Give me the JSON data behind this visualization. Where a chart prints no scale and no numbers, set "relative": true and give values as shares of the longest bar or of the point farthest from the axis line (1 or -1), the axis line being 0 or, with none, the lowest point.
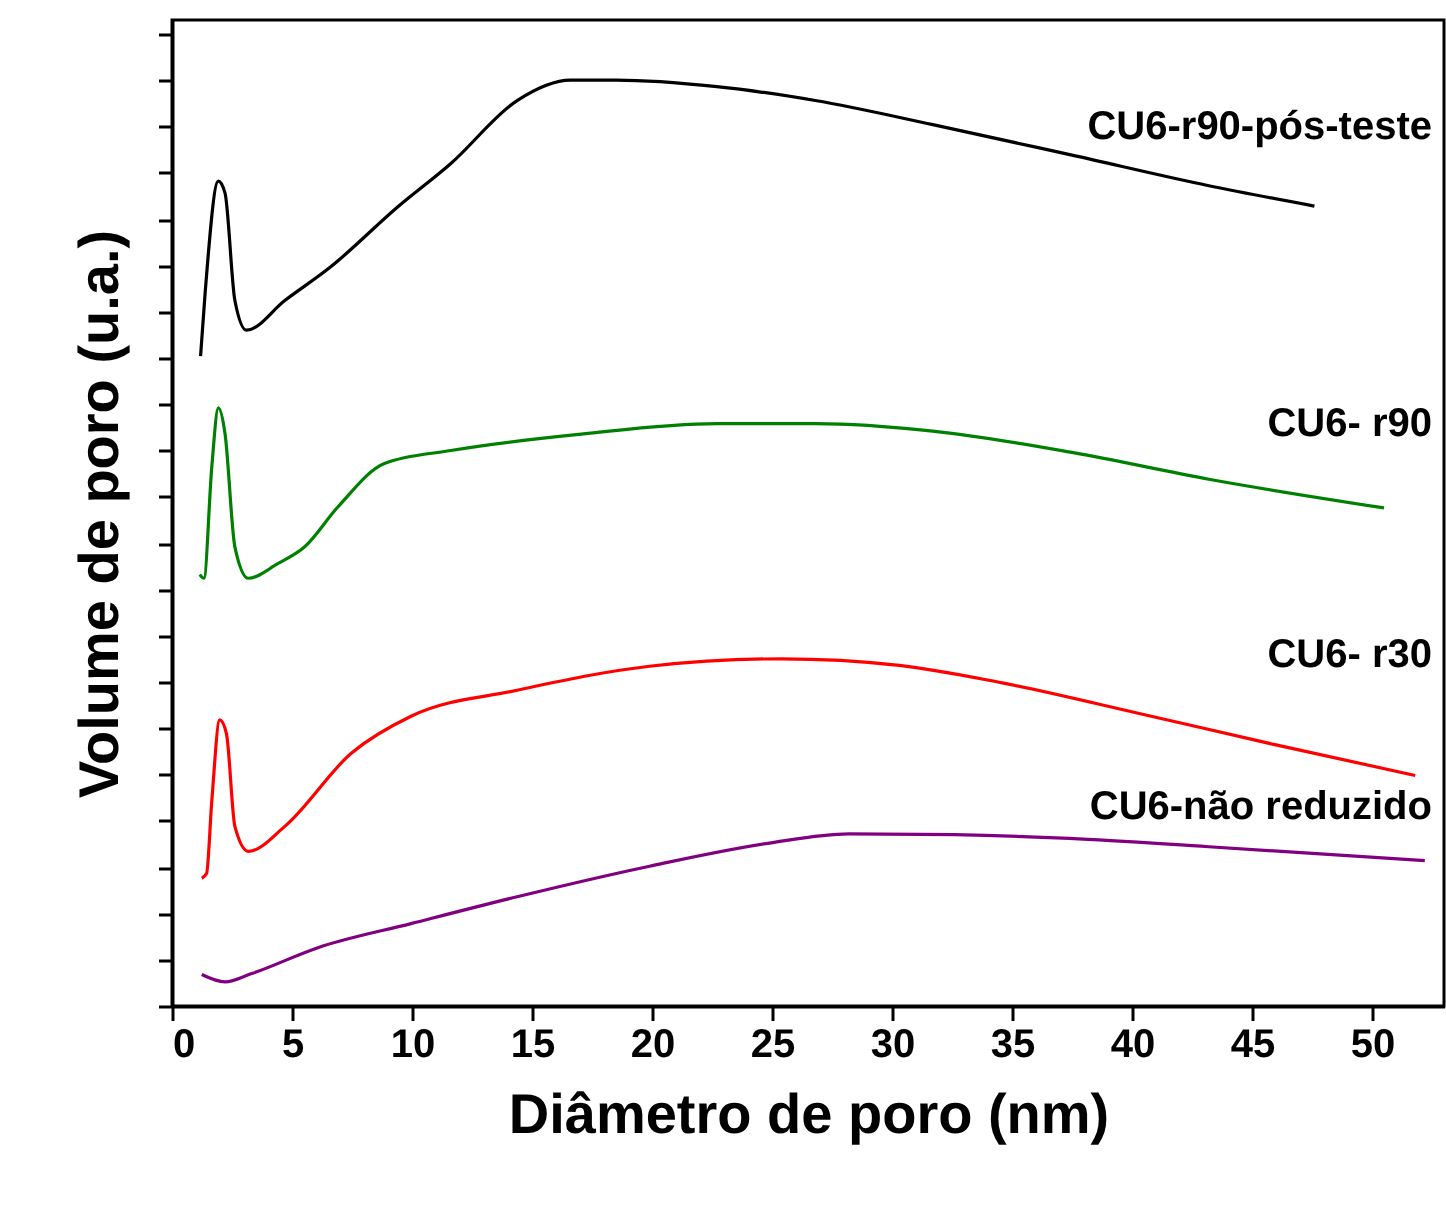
{
  "chart_data": {
    "type": "line",
    "relative": true,
    "xlabel": "Diâmetro de poro (nm)",
    "ylabel": "Volume de poro (u.a.)",
    "xlim": [
      0,
      53
    ],
    "xticks": [
      0,
      5,
      10,
      15,
      20,
      25,
      30,
      35,
      40,
      45,
      50
    ],
    "grid": false,
    "marker": "none",
    "line_style": "solid",
    "series": [
      {
        "name": "CU6-r90-pós-teste",
        "color": "#000000",
        "x": [
          1.19,
          1.38,
          1.93,
          2.21,
          2.62,
          3.1,
          4.7,
          6.64,
          9.4,
          11.62,
          14.38,
          16.6,
          18.5,
          22.7,
          26.8,
          31.7,
          37.5,
          43.2,
          47.6
        ],
        "values": [
          0.702,
          0.77,
          0.891,
          0.878,
          0.762,
          0.73,
          0.762,
          0.799,
          0.863,
          0.91,
          0.978,
          1.0,
          1.0,
          0.993,
          0.978,
          0.952,
          0.919,
          0.886,
          0.864
        ]
      },
      {
        "name": "CU6- r90",
        "color": "#008000",
        "x": [
          1.16,
          1.33,
          1.66,
          1.93,
          2.21,
          2.62,
          3.18,
          4.42,
          5.53,
          6.91,
          8.85,
          11.62,
          17.15,
          22.7,
          26.8,
          31.7,
          37.5,
          43.2,
          50.5
        ],
        "values": [
          0.466,
          0.462,
          0.583,
          0.646,
          0.618,
          0.496,
          0.462,
          0.478,
          0.496,
          0.539,
          0.586,
          0.6,
          0.618,
          0.629,
          0.629,
          0.621,
          0.598,
          0.569,
          0.538
        ]
      },
      {
        "name": "CU6- r30",
        "color": "#ff0000",
        "x": [
          1.24,
          1.44,
          1.66,
          1.99,
          2.27,
          2.62,
          3.18,
          4.7,
          7.47,
          9.96,
          14.38,
          19.9,
          25.4,
          30.3,
          34.6,
          40.3,
          46.0,
          51.8
        ],
        "values": [
          0.138,
          0.143,
          0.222,
          0.309,
          0.294,
          0.194,
          0.167,
          0.194,
          0.273,
          0.313,
          0.341,
          0.367,
          0.375,
          0.368,
          0.349,
          0.316,
          0.282,
          0.249
        ]
      },
      {
        "name": "CU6-não reduzido",
        "color": "#800080",
        "x": [
          1.24,
          2.21,
          3.32,
          6.08,
          9.96,
          14.38,
          19.9,
          24.9,
          28.2,
          32.6,
          37.4,
          43.2,
          52.2
        ],
        "values": [
          0.034,
          0.026,
          0.035,
          0.063,
          0.089,
          0.118,
          0.151,
          0.176,
          0.186,
          0.185,
          0.181,
          0.172,
          0.157
        ]
      }
    ]
  }
}
